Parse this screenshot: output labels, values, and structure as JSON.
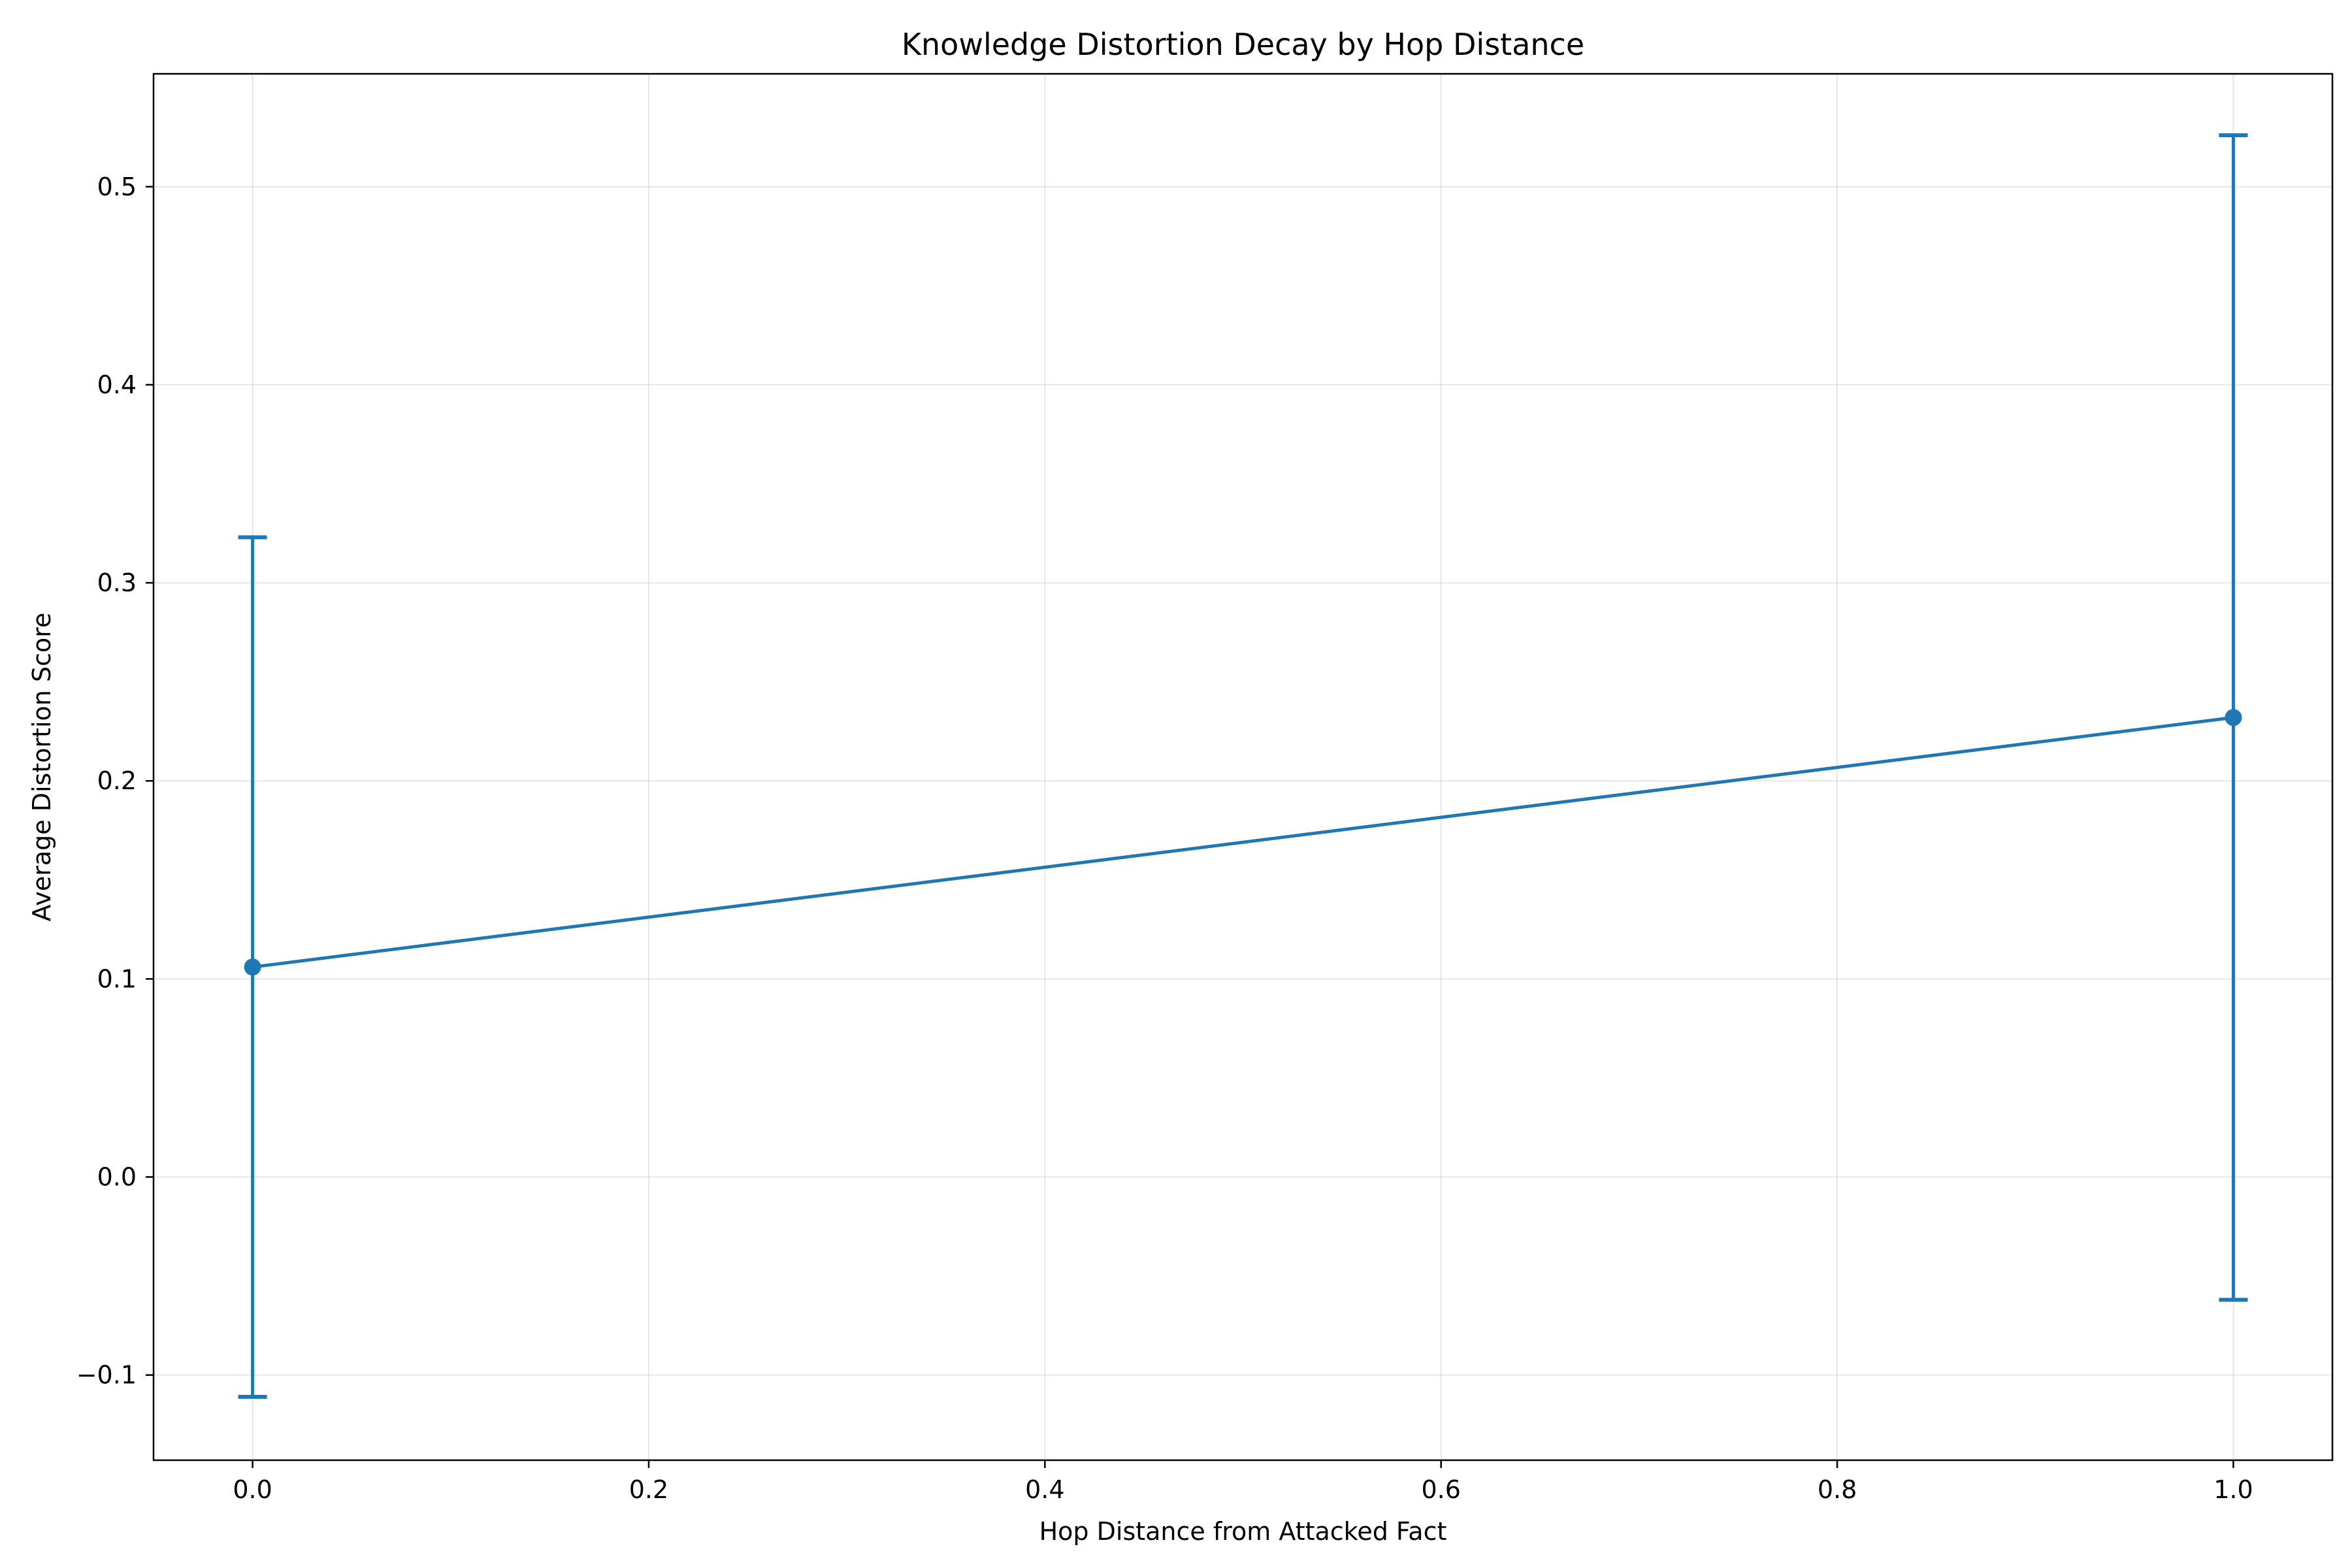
{
  "chart_data": {
    "type": "line",
    "title": "Knowledge Distortion Decay by Hop Distance",
    "xlabel": "Hop Distance from Attacked Fact",
    "ylabel": "Average Distortion Score",
    "xlim": [
      -0.05,
      1.05
    ],
    "ylim": [
      -0.143,
      0.557
    ],
    "x_ticks": [
      0.0,
      0.2,
      0.4,
      0.6,
      0.8,
      1.0
    ],
    "x_tick_labels": [
      "0.0",
      "0.2",
      "0.4",
      "0.6",
      "0.8",
      "1.0"
    ],
    "y_ticks": [
      -0.1,
      0.0,
      0.1,
      0.2,
      0.3,
      0.4,
      0.5
    ],
    "y_tick_labels": [
      "−0.1",
      "0.0",
      "0.1",
      "0.2",
      "0.3",
      "0.4",
      "0.5"
    ],
    "grid": true,
    "series": [
      {
        "x": [
          0,
          1
        ],
        "y": [
          0.106,
          0.232
        ],
        "error_lower": [
          -0.111,
          -0.062
        ],
        "error_upper": [
          0.323,
          0.526
        ],
        "color": "#1f77b4"
      }
    ]
  }
}
